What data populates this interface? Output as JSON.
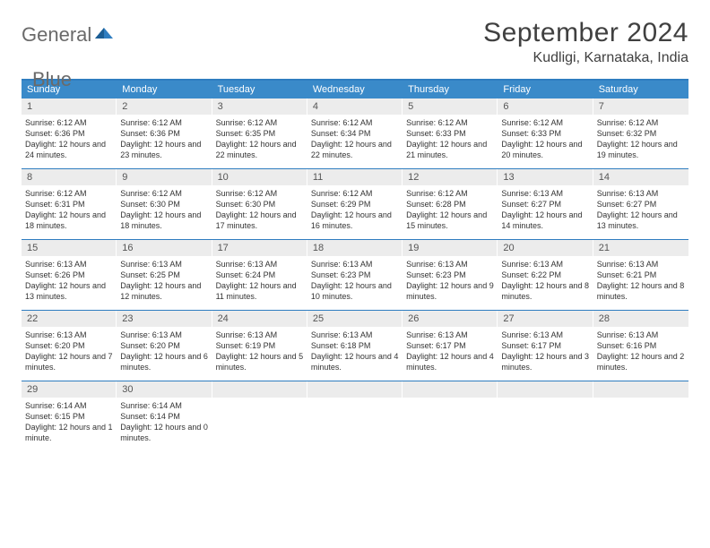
{
  "logo": {
    "text1": "General",
    "text2": "Blue"
  },
  "title": "September 2024",
  "location": "Kudligi, Karnataka, India",
  "colors": {
    "header_bg": "#3a8ac9",
    "header_border": "#2f7dc0",
    "daynum_bg": "#ececec",
    "text": "#333333",
    "title_text": "#404040"
  },
  "typography": {
    "title_fontsize": 30,
    "location_fontsize": 16,
    "dow_fontsize": 11,
    "body_fontsize": 9
  },
  "day_names": [
    "Sunday",
    "Monday",
    "Tuesday",
    "Wednesday",
    "Thursday",
    "Friday",
    "Saturday"
  ],
  "weeks": [
    [
      {
        "n": "1",
        "sr": "6:12 AM",
        "ss": "6:36 PM",
        "dl": "12 hours and 24 minutes."
      },
      {
        "n": "2",
        "sr": "6:12 AM",
        "ss": "6:36 PM",
        "dl": "12 hours and 23 minutes."
      },
      {
        "n": "3",
        "sr": "6:12 AM",
        "ss": "6:35 PM",
        "dl": "12 hours and 22 minutes."
      },
      {
        "n": "4",
        "sr": "6:12 AM",
        "ss": "6:34 PM",
        "dl": "12 hours and 22 minutes."
      },
      {
        "n": "5",
        "sr": "6:12 AM",
        "ss": "6:33 PM",
        "dl": "12 hours and 21 minutes."
      },
      {
        "n": "6",
        "sr": "6:12 AM",
        "ss": "6:33 PM",
        "dl": "12 hours and 20 minutes."
      },
      {
        "n": "7",
        "sr": "6:12 AM",
        "ss": "6:32 PM",
        "dl": "12 hours and 19 minutes."
      }
    ],
    [
      {
        "n": "8",
        "sr": "6:12 AM",
        "ss": "6:31 PM",
        "dl": "12 hours and 18 minutes."
      },
      {
        "n": "9",
        "sr": "6:12 AM",
        "ss": "6:30 PM",
        "dl": "12 hours and 18 minutes."
      },
      {
        "n": "10",
        "sr": "6:12 AM",
        "ss": "6:30 PM",
        "dl": "12 hours and 17 minutes."
      },
      {
        "n": "11",
        "sr": "6:12 AM",
        "ss": "6:29 PM",
        "dl": "12 hours and 16 minutes."
      },
      {
        "n": "12",
        "sr": "6:12 AM",
        "ss": "6:28 PM",
        "dl": "12 hours and 15 minutes."
      },
      {
        "n": "13",
        "sr": "6:13 AM",
        "ss": "6:27 PM",
        "dl": "12 hours and 14 minutes."
      },
      {
        "n": "14",
        "sr": "6:13 AM",
        "ss": "6:27 PM",
        "dl": "12 hours and 13 minutes."
      }
    ],
    [
      {
        "n": "15",
        "sr": "6:13 AM",
        "ss": "6:26 PM",
        "dl": "12 hours and 13 minutes."
      },
      {
        "n": "16",
        "sr": "6:13 AM",
        "ss": "6:25 PM",
        "dl": "12 hours and 12 minutes."
      },
      {
        "n": "17",
        "sr": "6:13 AM",
        "ss": "6:24 PM",
        "dl": "12 hours and 11 minutes."
      },
      {
        "n": "18",
        "sr": "6:13 AM",
        "ss": "6:23 PM",
        "dl": "12 hours and 10 minutes."
      },
      {
        "n": "19",
        "sr": "6:13 AM",
        "ss": "6:23 PM",
        "dl": "12 hours and 9 minutes."
      },
      {
        "n": "20",
        "sr": "6:13 AM",
        "ss": "6:22 PM",
        "dl": "12 hours and 8 minutes."
      },
      {
        "n": "21",
        "sr": "6:13 AM",
        "ss": "6:21 PM",
        "dl": "12 hours and 8 minutes."
      }
    ],
    [
      {
        "n": "22",
        "sr": "6:13 AM",
        "ss": "6:20 PM",
        "dl": "12 hours and 7 minutes."
      },
      {
        "n": "23",
        "sr": "6:13 AM",
        "ss": "6:20 PM",
        "dl": "12 hours and 6 minutes."
      },
      {
        "n": "24",
        "sr": "6:13 AM",
        "ss": "6:19 PM",
        "dl": "12 hours and 5 minutes."
      },
      {
        "n": "25",
        "sr": "6:13 AM",
        "ss": "6:18 PM",
        "dl": "12 hours and 4 minutes."
      },
      {
        "n": "26",
        "sr": "6:13 AM",
        "ss": "6:17 PM",
        "dl": "12 hours and 4 minutes."
      },
      {
        "n": "27",
        "sr": "6:13 AM",
        "ss": "6:17 PM",
        "dl": "12 hours and 3 minutes."
      },
      {
        "n": "28",
        "sr": "6:13 AM",
        "ss": "6:16 PM",
        "dl": "12 hours and 2 minutes."
      }
    ],
    [
      {
        "n": "29",
        "sr": "6:14 AM",
        "ss": "6:15 PM",
        "dl": "12 hours and 1 minute."
      },
      {
        "n": "30",
        "sr": "6:14 AM",
        "ss": "6:14 PM",
        "dl": "12 hours and 0 minutes."
      },
      {
        "n": "",
        "sr": "",
        "ss": "",
        "dl": "",
        "empty": true
      },
      {
        "n": "",
        "sr": "",
        "ss": "",
        "dl": "",
        "empty": true
      },
      {
        "n": "",
        "sr": "",
        "ss": "",
        "dl": "",
        "empty": true
      },
      {
        "n": "",
        "sr": "",
        "ss": "",
        "dl": "",
        "empty": true
      },
      {
        "n": "",
        "sr": "",
        "ss": "",
        "dl": "",
        "empty": true
      }
    ]
  ],
  "labels": {
    "sunrise": "Sunrise:",
    "sunset": "Sunset:",
    "daylight": "Daylight:"
  }
}
